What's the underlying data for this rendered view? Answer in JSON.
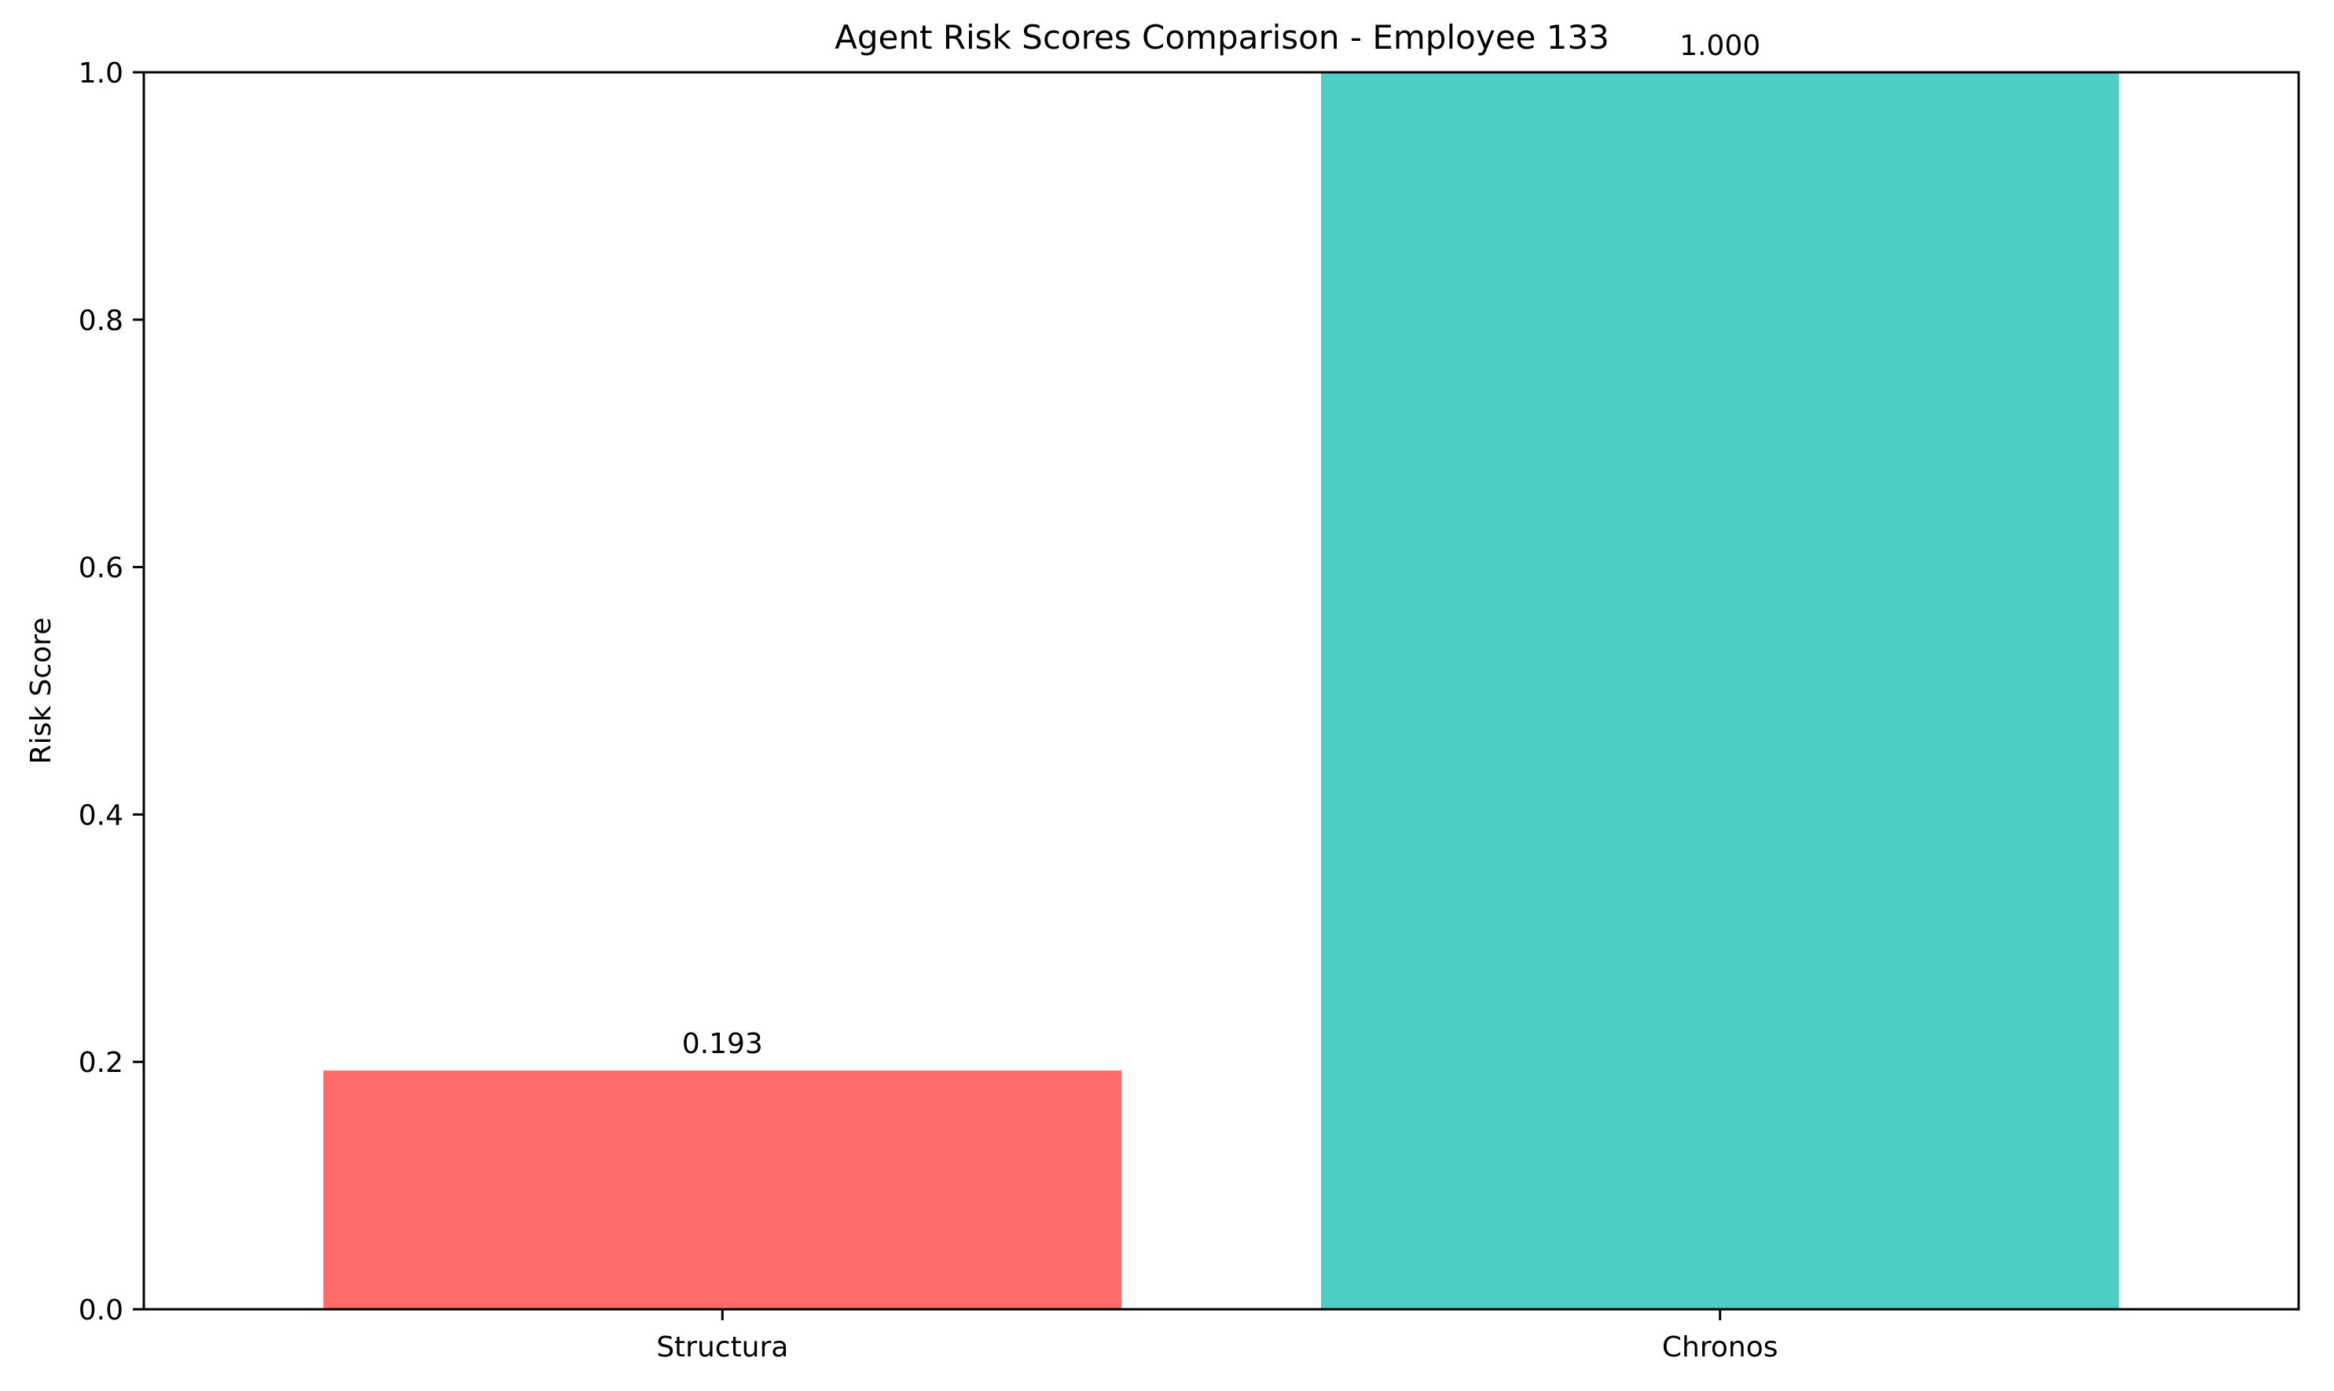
{
  "chart_data": {
    "type": "bar",
    "title": "Agent Risk Scores Comparison - Employee 133",
    "xlabel": "",
    "ylabel": "Risk Score",
    "categories": [
      "Structura",
      "Chronos"
    ],
    "values": [
      0.193,
      1.0
    ],
    "value_labels": [
      "0.193",
      "1.000"
    ],
    "colors": [
      "#ff6b6b",
      "#4ecdc4"
    ],
    "ylim": [
      0,
      1.0
    ],
    "yticks": [
      0.0,
      0.2,
      0.4,
      0.6,
      0.8,
      1.0
    ],
    "ytick_labels": [
      "0.0",
      "0.2",
      "0.4",
      "0.6",
      "0.8",
      "1.0"
    ],
    "grid": false,
    "legend": false
  }
}
